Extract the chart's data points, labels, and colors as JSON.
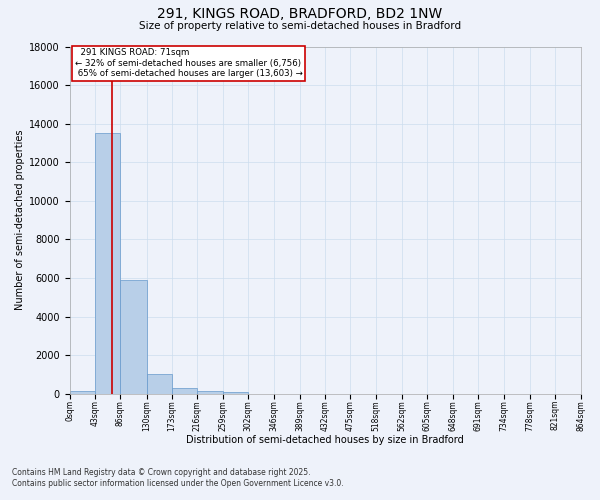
{
  "title_line1": "291, KINGS ROAD, BRADFORD, BD2 1NW",
  "title_line2": "Size of property relative to semi-detached houses in Bradford",
  "xlabel": "Distribution of semi-detached houses by size in Bradford",
  "ylabel": "Number of semi-detached properties",
  "property_label": "291 KINGS ROAD: 71sqm",
  "pct_smaller": 32,
  "count_smaller": 6756,
  "pct_larger": 65,
  "count_larger": 13603,
  "bin_edges": [
    0,
    43,
    86,
    130,
    173,
    216,
    259,
    302,
    346,
    389,
    432,
    475,
    518,
    562,
    605,
    648,
    691,
    734,
    778,
    821,
    864
  ],
  "bar_heights": [
    150,
    13500,
    5900,
    1000,
    300,
    150,
    80,
    0,
    0,
    0,
    0,
    0,
    0,
    0,
    0,
    0,
    0,
    0,
    0,
    0
  ],
  "bar_color": "#b8cfe8",
  "bar_edge_color": "#6699cc",
  "vline_color": "#cc0000",
  "vline_x": 71,
  "ylim": [
    0,
    18000
  ],
  "yticks": [
    0,
    2000,
    4000,
    6000,
    8000,
    10000,
    12000,
    14000,
    16000,
    18000
  ],
  "grid_color": "#ccddee",
  "bg_color": "#eef2fa",
  "footnote_line1": "Contains HM Land Registry data © Crown copyright and database right 2025.",
  "footnote_line2": "Contains public sector information licensed under the Open Government Licence v3.0."
}
